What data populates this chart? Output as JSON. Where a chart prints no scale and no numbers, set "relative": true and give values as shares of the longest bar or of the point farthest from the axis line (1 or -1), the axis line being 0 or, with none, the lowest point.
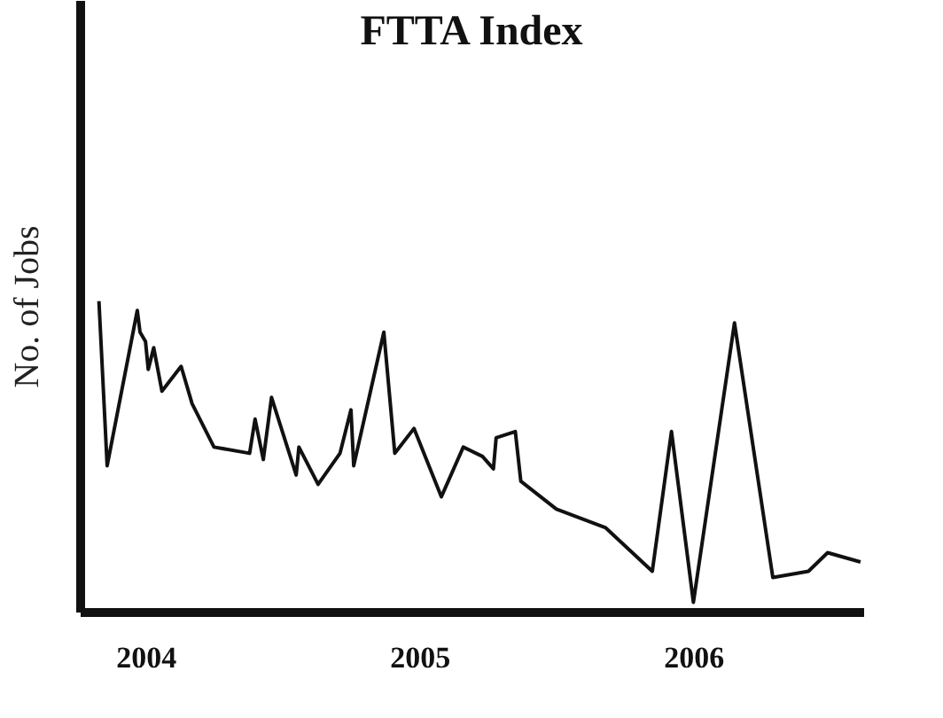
{
  "chart_data": {
    "type": "line",
    "title": "FTTA Index",
    "ylabel": "No. of Jobs",
    "relative": true,
    "x": [
      2003.83,
      2003.86,
      2003.97,
      2003.98,
      2004.0,
      2004.01,
      2004.03,
      2004.06,
      2004.13,
      2004.17,
      2004.25,
      2004.38,
      2004.4,
      2004.43,
      2004.46,
      2004.55,
      2004.56,
      2004.63,
      2004.71,
      2004.75,
      2004.76,
      2004.87,
      2004.91,
      2004.98,
      2005.08,
      2005.16,
      2005.23,
      2005.27,
      2005.28,
      2005.35,
      2005.37,
      2005.5,
      2005.68,
      2005.85,
      2005.92,
      2006.0,
      2006.15,
      2006.29,
      2006.42,
      2006.49,
      2006.61
    ],
    "series": [
      {
        "color": "#111111",
        "values": [
          1.0,
          0.47,
          0.97,
          0.9,
          0.87,
          0.78,
          0.85,
          0.71,
          0.79,
          0.67,
          0.53,
          0.51,
          0.62,
          0.49,
          0.69,
          0.44,
          0.53,
          0.41,
          0.51,
          0.65,
          0.47,
          0.9,
          0.51,
          0.59,
          0.37,
          0.53,
          0.5,
          0.46,
          0.56,
          0.58,
          0.42,
          0.33,
          0.27,
          0.13,
          0.58,
          0.03,
          0.93,
          0.11,
          0.13,
          0.19,
          0.16
        ]
      }
    ],
    "xlim": [
      2003.76,
      2006.62
    ],
    "xticks": [
      2004,
      2005,
      2006
    ],
    "grid": false,
    "legend": false,
    "marker": "none",
    "line_style": "solid"
  }
}
